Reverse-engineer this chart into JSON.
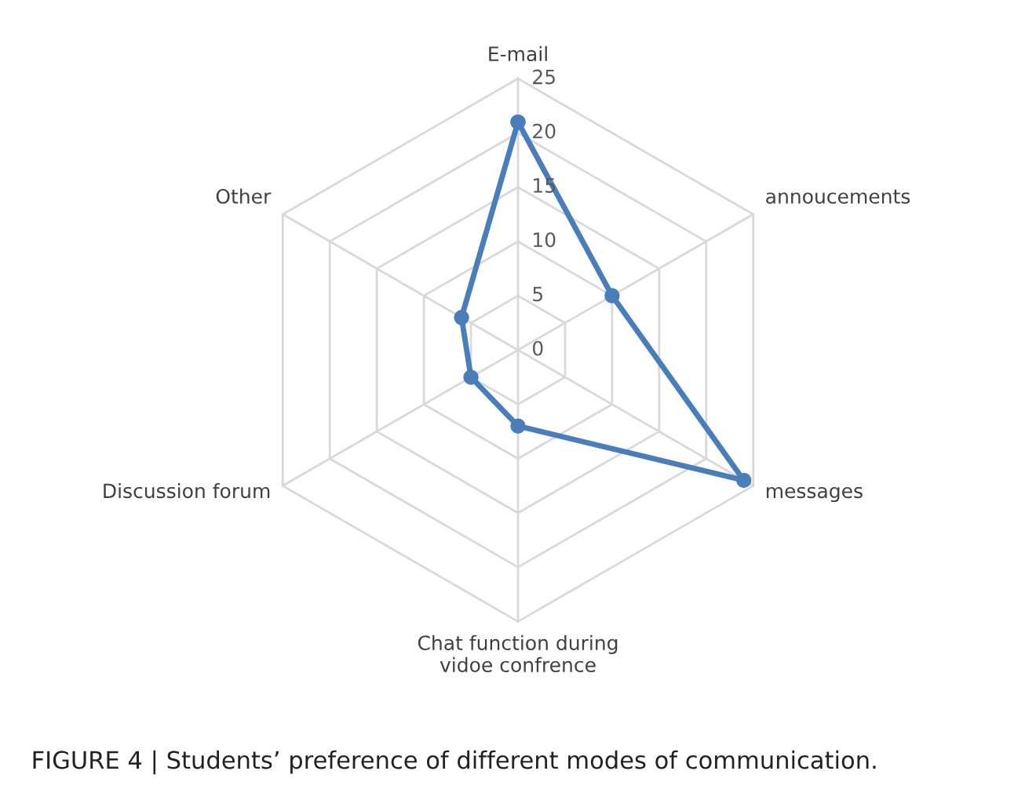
{
  "chart_data": {
    "type": "radar",
    "categories": [
      "E-mail",
      "annoucements",
      "messages",
      "Chat function during\nvidoe confrence",
      "Discussion forum",
      "Other"
    ],
    "series": [
      {
        "color": "#4a7ebb",
        "values": [
          21,
          10,
          24,
          7,
          5,
          6
        ]
      }
    ],
    "ylim": [
      0,
      25
    ],
    "yticks": [
      0,
      5,
      10,
      15,
      20,
      25
    ],
    "grid": true,
    "marker": "circle",
    "line_style": "solid",
    "annotations": [
      "FIGURE 4 | Students’ preference of different modes of communication."
    ]
  }
}
